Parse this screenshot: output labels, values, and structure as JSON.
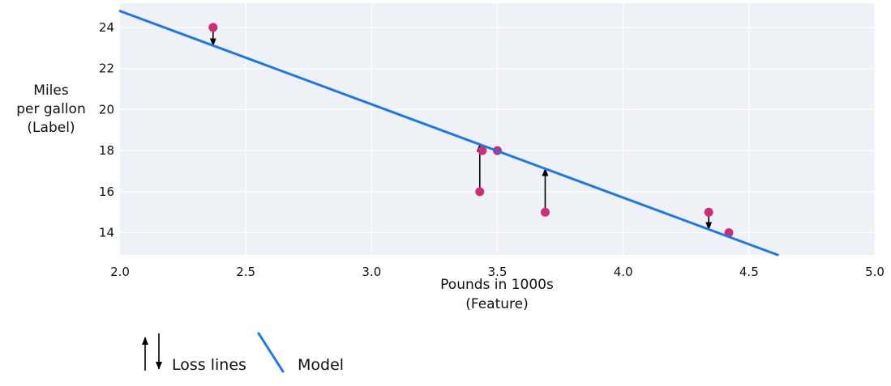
{
  "figure": {
    "background": "#ffffff",
    "plot_background": "#eef1f6",
    "grid_color": "#ffffff",
    "text_color": "#111111"
  },
  "chart_data": {
    "type": "scatter",
    "title": "",
    "xlabel_lines": [
      "Pounds in 1000s",
      "(Feature)"
    ],
    "ylabel_lines": [
      "Miles",
      "per gallon",
      "(Label)"
    ],
    "xlim": [
      2.0,
      5.0
    ],
    "ylim": [
      12.92,
      25.18
    ],
    "x_ticks": [
      2.0,
      2.5,
      3.0,
      3.5,
      4.0,
      4.5,
      5.0
    ],
    "x_tick_labels": [
      "2.0",
      "2.5",
      "3.0",
      "3.5",
      "4.0",
      "4.5",
      "5.0"
    ],
    "y_ticks": [
      14,
      16,
      18,
      20,
      22,
      24
    ],
    "y_tick_labels": [
      "14",
      "16",
      "18",
      "20",
      "22",
      "24"
    ],
    "grid": true,
    "points": [
      {
        "x": 2.37,
        "y": 24,
        "loss_arrow": true
      },
      {
        "x": 3.43,
        "y": 16,
        "loss_arrow": true
      },
      {
        "x": 3.44,
        "y": 18,
        "loss_arrow": false
      },
      {
        "x": 3.5,
        "y": 18,
        "loss_arrow": false
      },
      {
        "x": 3.69,
        "y": 15,
        "loss_arrow": true
      },
      {
        "x": 4.34,
        "y": 15,
        "loss_arrow": true
      },
      {
        "x": 4.42,
        "y": 14,
        "loss_arrow": true
      }
    ],
    "model_line": {
      "x1": 2.0,
      "y1": 24.8,
      "x2": 4.614,
      "y2": 12.92
    },
    "point_color": "#d02c77",
    "line_color": "#1b76f2",
    "arrow_color": "#000000",
    "legend": {
      "loss_label": "Loss lines",
      "model_label": "Model"
    }
  }
}
